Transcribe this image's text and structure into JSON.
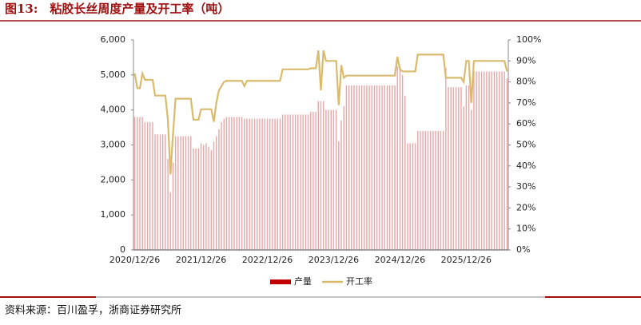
{
  "title": "图13:　粘胶长丝周度产量及开工率（吨）",
  "source": "资料来源：百川盈孚，浙商证券研究所",
  "chart_data": {
    "type": "bar-line",
    "categories": [
      "2020/12/26",
      null,
      null,
      null,
      null,
      null,
      null,
      null,
      null,
      null,
      null,
      null,
      null,
      null,
      null,
      null,
      null,
      null,
      null,
      null,
      null,
      null,
      null,
      null,
      null,
      null,
      "2021/12/26",
      null,
      null,
      null,
      null,
      null,
      null,
      null,
      null,
      null,
      null,
      null,
      null,
      null,
      null,
      null,
      null,
      null,
      null,
      null,
      null,
      null,
      null,
      null,
      null,
      null,
      "2022/12/26",
      null,
      null,
      null,
      null,
      null,
      null,
      null,
      null,
      null,
      null,
      null,
      null,
      null,
      null,
      null,
      null,
      null,
      null,
      null,
      null,
      null,
      null,
      null,
      null,
      null,
      "2023/12/26",
      null,
      null,
      null,
      null,
      null,
      null,
      null,
      null,
      null,
      null,
      null,
      null,
      null,
      null,
      null,
      null,
      null,
      null,
      null,
      null,
      null,
      null,
      null,
      null,
      null,
      "2024/12/26",
      null,
      null,
      null,
      null,
      null,
      null,
      null,
      null,
      null,
      null,
      null,
      null,
      null,
      null,
      null,
      null,
      null,
      null,
      null,
      null,
      null,
      null,
      null,
      null,
      null,
      "2025/12/26",
      null,
      null,
      null,
      null,
      null,
      null,
      null,
      null,
      null,
      null,
      null,
      null,
      null,
      null,
      null,
      null
    ],
    "series": [
      {
        "name": "产量",
        "color": "#c00000",
        "kind": "bar",
        "values": [
          3800,
          3800,
          3800,
          3800,
          3650,
          3650,
          3650,
          3650,
          3300,
          3300,
          3300,
          3300,
          3300,
          2600,
          1650,
          2500,
          3250,
          3250,
          3250,
          3250,
          3250,
          3250,
          3250,
          2900,
          2900,
          2900,
          3050,
          3000,
          3050,
          2950,
          2850,
          3100,
          3250,
          3450,
          3650,
          3750,
          3800,
          3800,
          3800,
          3800,
          3800,
          3800,
          3800,
          3750,
          3750,
          3750,
          3750,
          3750,
          3750,
          3750,
          3750,
          3750,
          3750,
          3750,
          3750,
          3750,
          3750,
          3750,
          3870,
          3870,
          3870,
          3870,
          3870,
          3870,
          3870,
          3870,
          3870,
          3870,
          3870,
          3950,
          3950,
          3950,
          4250,
          4250,
          4250,
          4000,
          4000,
          4000,
          4000,
          4000,
          3100,
          3700,
          4100,
          4700,
          4700,
          4700,
          4700,
          4700,
          4700,
          4700,
          4700,
          4700,
          4700,
          4700,
          4700,
          4700,
          4700,
          4700,
          4700,
          4700,
          4700,
          4700,
          4700,
          5250,
          5250,
          5000,
          4400,
          3050,
          3050,
          3050,
          3050,
          3400,
          3400,
          3400,
          3400,
          3400,
          3400,
          3400,
          3400,
          3400,
          3400,
          3400,
          5200,
          4650,
          4650,
          4650,
          4650,
          4650,
          4650,
          4100,
          4700,
          4700,
          4000,
          5100,
          5100,
          5100,
          5100,
          5100,
          5100,
          5100,
          5100,
          5100,
          5100,
          5100,
          5100,
          5100,
          4900
        ]
      },
      {
        "name": "开工率",
        "color": "#d9bb6e",
        "kind": "line",
        "axis": "y2",
        "values": [
          84,
          77,
          77,
          84,
          81,
          81,
          81,
          81,
          73.5,
          73.5,
          73.5,
          73.5,
          73.5,
          62,
          36,
          55,
          72,
          72,
          72,
          72,
          72,
          72,
          72,
          62,
          62,
          62,
          67,
          67,
          67,
          67,
          67,
          61,
          70,
          76,
          78,
          80,
          80.5,
          80.5,
          80.5,
          80.5,
          80.5,
          80.5,
          80.5,
          78,
          80.5,
          80.5,
          80.5,
          80.5,
          80.5,
          80.5,
          80.5,
          80.5,
          80.5,
          80.5,
          80.5,
          80.5,
          80.5,
          80.5,
          86,
          86,
          86,
          86,
          86,
          86,
          86,
          86,
          86,
          86,
          86,
          86.5,
          86.5,
          86.5,
          95,
          76,
          95,
          90,
          90,
          90,
          90,
          90,
          69,
          88,
          82,
          83,
          83,
          83,
          83,
          83,
          83,
          83,
          83,
          83,
          83,
          83,
          83,
          83,
          83,
          83,
          83,
          83,
          83,
          83,
          83,
          92,
          86,
          85,
          85,
          85,
          85,
          85,
          85,
          93,
          93,
          93,
          93,
          93,
          93,
          93,
          93,
          93,
          93,
          93,
          82,
          82,
          82,
          82,
          82,
          82,
          82,
          80,
          90,
          90,
          70,
          90,
          90,
          90,
          90,
          90,
          90,
          90,
          90,
          90,
          90,
          90,
          90,
          90,
          85
        ]
      }
    ],
    "ylim": [
      0,
      6000
    ],
    "yticks": [
      0,
      {
        "value": 1000,
        "label": "1,000"
      },
      {
        "value": 2000,
        "label": "2,000"
      },
      {
        "value": 3000,
        "label": "3,000"
      },
      {
        "value": 4000,
        "label": "4,000"
      },
      {
        "value": 5000,
        "label": "5,000"
      },
      {
        "value": 6000,
        "label": "6,000"
      }
    ],
    "y2lim": [
      0,
      100
    ],
    "y2ticks": [
      {
        "value": 0,
        "label": "0%"
      },
      {
        "value": 10,
        "label": "10%"
      },
      {
        "value": 20,
        "label": "20%"
      },
      {
        "value": 30,
        "label": "30%"
      },
      {
        "value": 40,
        "label": "40%"
      },
      {
        "value": 50,
        "label": "50%"
      },
      {
        "value": 60,
        "label": "60%"
      },
      {
        "value": 70,
        "label": "70%"
      },
      {
        "value": 80,
        "label": "80%"
      },
      {
        "value": 90,
        "label": "90%"
      },
      {
        "value": 100,
        "label": "100%"
      }
    ],
    "legend": "bottom"
  }
}
